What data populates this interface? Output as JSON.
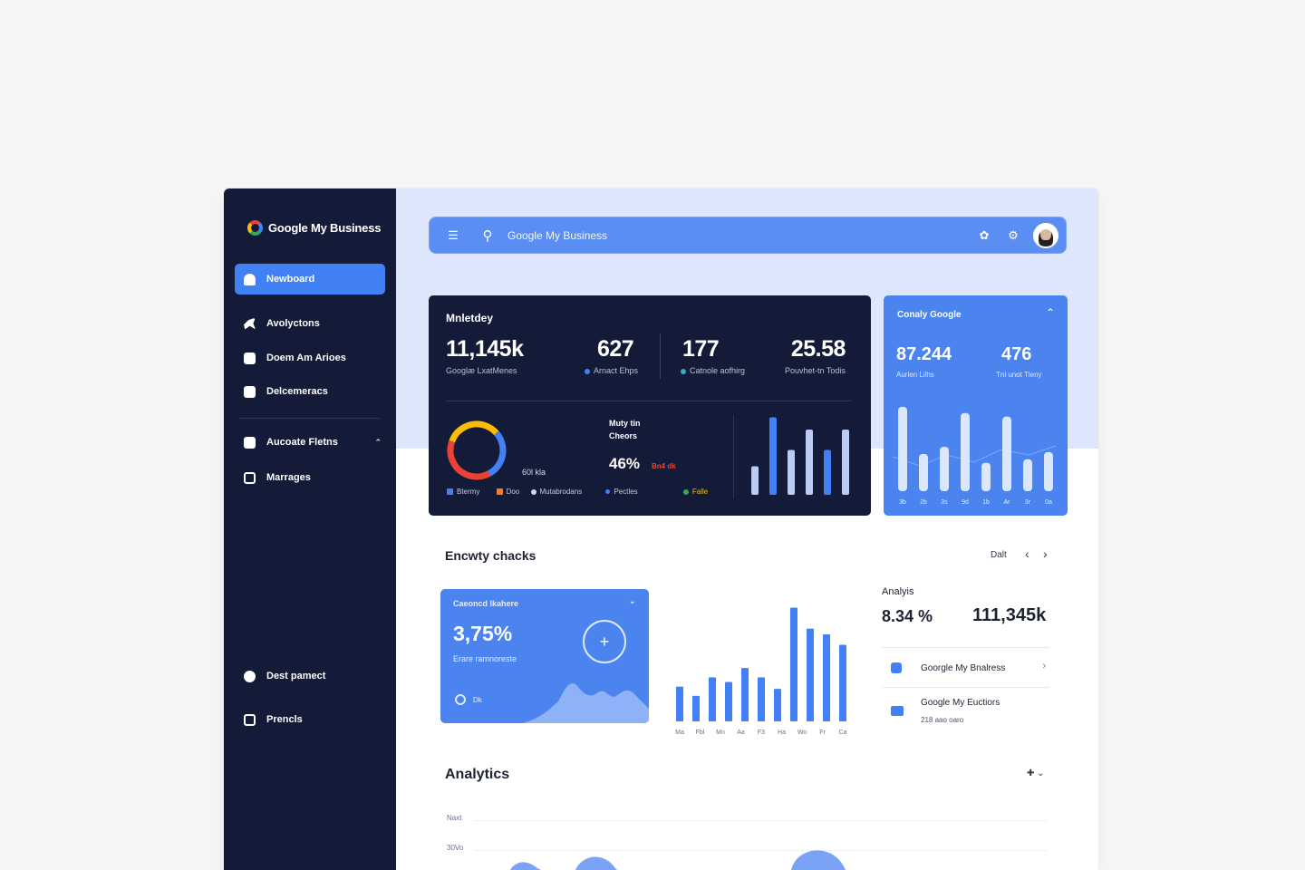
{
  "app": {
    "title": "Google My Business"
  },
  "sidebar": {
    "items": [
      {
        "label": "Newboard",
        "active": true
      },
      {
        "label": "Avolyctons"
      },
      {
        "label": "Doem Am Arioes"
      },
      {
        "label": "Delcemeracs"
      },
      {
        "label": "Aucoate Fletns"
      },
      {
        "label": "Marrages"
      },
      {
        "label": "Dest pamect"
      },
      {
        "label": "Prencls"
      }
    ]
  },
  "search": {
    "text": "Google My Business"
  },
  "overview": {
    "title": "Mnletdey",
    "stats": [
      {
        "value": "11,145k",
        "label": "Googlæ LxatMenes"
      },
      {
        "value": "627",
        "label": "Arnact Ehps"
      },
      {
        "value": "177",
        "label": "Catnole aofhirg"
      },
      {
        "value": "25.58",
        "label": "Pouvhet-tn Todis"
      }
    ],
    "donut_label": "60l kla",
    "mid_title": "Muty  tin",
    "mid_sub": "Cheors",
    "mid_value": "46%",
    "mid_badge": "Bn4 dk",
    "legend": [
      "Btermy",
      "Doo",
      "Mutabrodans",
      "Pectles",
      "Falle"
    ],
    "colors": {
      "blue": "#4281f5",
      "orange": "#f57c2b",
      "red": "#ea4335",
      "yellow": "#fbbc05",
      "green": "#34a853"
    },
    "bars": [
      0.35,
      0.95,
      0.55,
      0.8,
      0.55,
      0.8
    ],
    "bar_tones": [
      "light",
      "blue",
      "light",
      "light",
      "blue",
      "light"
    ]
  },
  "side_card": {
    "title": "Conaly Google",
    "stat1": {
      "value": "87.244",
      "label": "Aurlen Lilhs"
    },
    "stat2": {
      "value": "476",
      "label": "Tnl unot Tleny"
    },
    "bars": [
      0.95,
      0.42,
      0.5,
      0.88,
      0.32,
      0.84,
      0.36,
      0.44
    ],
    "xlabels": [
      "3b",
      "2b",
      "3s",
      "9d",
      "1b",
      "Ar",
      "3r",
      "0a"
    ]
  },
  "activity": {
    "title": "Encwty chacks",
    "pager_label": "Dalt",
    "card": {
      "title": "Caeoncd lkahere",
      "value": "3,75%",
      "sub": "Erare ramnoreste",
      "footer": "Dk"
    },
    "bars": [
      0.3,
      0.22,
      0.38,
      0.34,
      0.46,
      0.38,
      0.28,
      0.98,
      0.8,
      0.75,
      0.66
    ],
    "xlabels": [
      "Ma",
      "Fbl",
      "Mn",
      "Aa",
      "F3",
      "Ha",
      "Wo",
      "Fr",
      "Ca"
    ]
  },
  "analysis": {
    "title": "Analyis",
    "pct": "8.34 %",
    "total": "111,345k",
    "rows": [
      {
        "label": "Goorgle My Bnalress"
      },
      {
        "label": "Google My Euctiors",
        "sub": "218 aao oaro"
      }
    ]
  },
  "analytics": {
    "title": "Analytics",
    "ylabels": [
      "Naxt",
      "30Vo"
    ]
  }
}
